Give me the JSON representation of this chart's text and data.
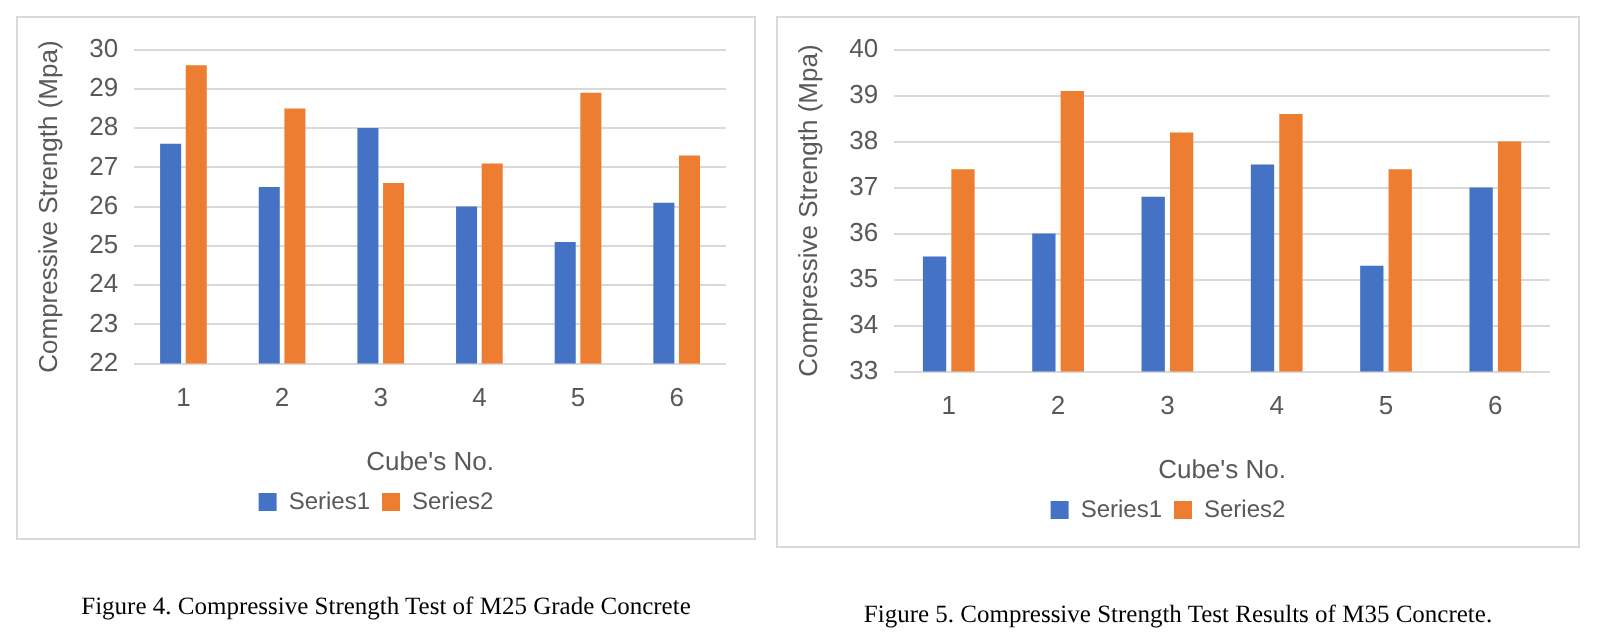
{
  "chart_data": [
    {
      "type": "bar",
      "xlabel": "Cube's No.",
      "ylabel": "Compressive Strength (Mpa)",
      "categories": [
        "1",
        "2",
        "3",
        "4",
        "5",
        "6"
      ],
      "series": [
        {
          "name": "Series1",
          "color": "#4472c4",
          "values": [
            27.6,
            26.5,
            28.0,
            26.0,
            25.1,
            26.1
          ]
        },
        {
          "name": "Series2",
          "color": "#ed7d31",
          "values": [
            29.6,
            28.5,
            26.6,
            27.1,
            28.9,
            27.3
          ]
        }
      ],
      "ylim": [
        22,
        30
      ],
      "yticks": [
        22,
        23,
        24,
        25,
        26,
        27,
        28,
        29,
        30
      ],
      "grid": "y",
      "legend": "bottom",
      "annotations": [
        "Figure 4. Compressive Strength Test of M25 Grade Concrete"
      ]
    },
    {
      "type": "bar",
      "xlabel": "Cube's No.",
      "ylabel": "Compressive Strength (Mpa)",
      "categories": [
        "1",
        "2",
        "3",
        "4",
        "5",
        "6"
      ],
      "series": [
        {
          "name": "Series1",
          "color": "#4472c4",
          "values": [
            35.5,
            36.0,
            36.8,
            37.5,
            35.3,
            37.0
          ]
        },
        {
          "name": "Series2",
          "color": "#ed7d31",
          "values": [
            37.4,
            39.1,
            38.2,
            38.6,
            37.4,
            38.0
          ]
        }
      ],
      "ylim": [
        33,
        40
      ],
      "yticks": [
        33,
        34,
        35,
        36,
        37,
        38,
        39,
        40
      ],
      "grid": "y",
      "legend": "bottom",
      "annotations": [
        "Figure 5. Compressive Strength Test Results of M35 Concrete."
      ]
    }
  ]
}
